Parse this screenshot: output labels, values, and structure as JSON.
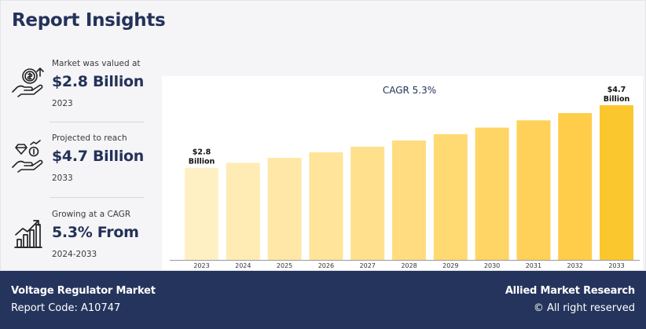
{
  "header": {
    "title": "Report Insights"
  },
  "stats": [
    {
      "label": "Market was valued at",
      "value": "$2.8 Billion",
      "year": "2023",
      "icon": "money-hand-icon"
    },
    {
      "label": "Projected to reach",
      "value": "$4.7 Billion",
      "year": "2033",
      "icon": "diamond-coin-hand-icon"
    },
    {
      "label": "Growing at a CAGR",
      "value": "5.3% From",
      "year": "2024-2033",
      "icon": "growth-chart-icon"
    }
  ],
  "chart_data": {
    "type": "bar",
    "title": "CAGR 5.3%",
    "categories": [
      "2023",
      "2024",
      "2025",
      "2026",
      "2027",
      "2028",
      "2029",
      "2030",
      "2031",
      "2032",
      "2033"
    ],
    "values": [
      2.8,
      2.95,
      3.1,
      3.27,
      3.44,
      3.63,
      3.82,
      4.02,
      4.24,
      4.46,
      4.7
    ],
    "data_labels": [
      {
        "index": 0,
        "line1": "$2.8",
        "line2": "Billion"
      },
      {
        "index": 10,
        "line1": "$4.7",
        "line2": "Billion"
      }
    ],
    "colors": [
      "#fff0c4",
      "#ffecb5",
      "#ffe8a7",
      "#ffe49a",
      "#ffe08d",
      "#ffdc80",
      "#ffd972",
      "#ffd565",
      "#ffd158",
      "#ffcd4a",
      "#fbc72e"
    ],
    "grid": false,
    "legend": "none"
  },
  "footer": {
    "market": "Voltage Regulator Market",
    "report_code": "Report Code: A10747",
    "brand": "Allied Market Research",
    "rights": "© All right reserved"
  }
}
